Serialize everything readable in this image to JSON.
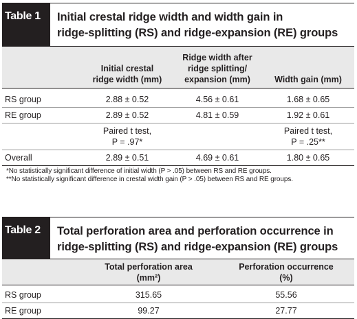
{
  "table1": {
    "label": "Table 1",
    "title_line1": "Initial crestal ridge width and width gain in",
    "title_line2": "ridge-splitting (RS) and ridge-expansion (RE) groups",
    "headers": [
      [
        "Initial crestal",
        "ridge width (mm)"
      ],
      [
        "Ridge width after",
        "ridge splitting/",
        "expansion (mm)"
      ],
      [
        "Width gain (mm)"
      ]
    ],
    "rows": [
      {
        "label": "RS group",
        "cells": [
          "2.88 ± 0.52",
          "4.56 ± 0.61",
          "1.68 ± 0.65"
        ]
      },
      {
        "label": "RE group",
        "cells": [
          "2.89 ± 0.52",
          "4.81 ± 0.59",
          "1.92 ± 0.61"
        ]
      }
    ],
    "test_row": {
      "col1": [
        "Paired t test,",
        "P = .97*"
      ],
      "col3": [
        "Paired t test,",
        "P = .25**"
      ]
    },
    "overall": {
      "label": "Overall",
      "cells": [
        "2.89 ± 0.51",
        "4.69 ± 0.61",
        "1.80 ± 0.65"
      ]
    },
    "footnotes": [
      "*No statistically significant difference of initial width (P > .05) between RS and RE groups.",
      "**No statistically significant difference in crestal width gain (P > .05) between RS and RE groups."
    ]
  },
  "table2": {
    "label": "Table 2",
    "title_line1": "Total perforation area and perforation occurrence in",
    "title_line2": "ridge-splitting (RS) and ridge-expansion (RE) groups",
    "headers": [
      [
        "Total perforation area",
        "(mm²)"
      ],
      [
        "Perforation occurrence",
        "(%)"
      ]
    ],
    "rows": [
      {
        "label": "RS group",
        "cells": [
          "315.65",
          "55.56"
        ]
      },
      {
        "label": "RE group",
        "cells": [
          "99.27",
          "27.77"
        ]
      }
    ]
  }
}
